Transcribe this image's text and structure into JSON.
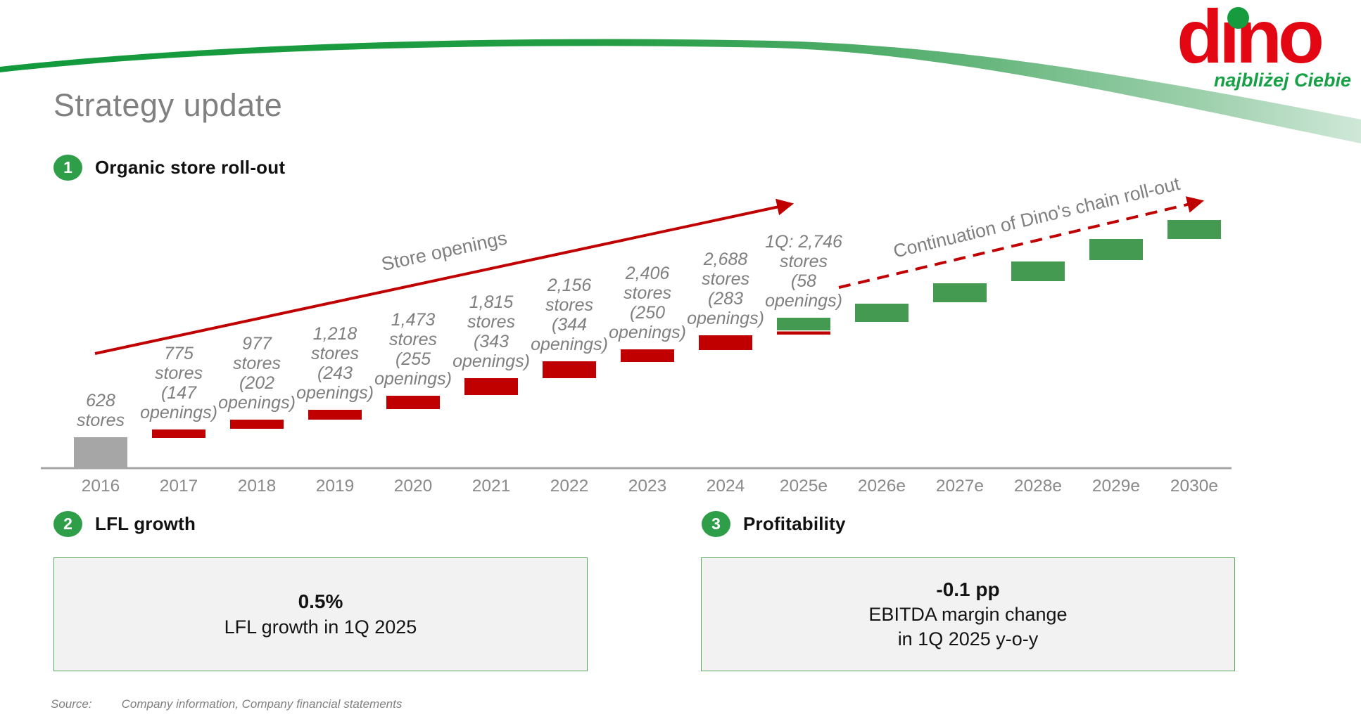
{
  "slide": {
    "title": "Strategy update",
    "logo": {
      "word": "dino",
      "tagline": "najbliżej Ciebie"
    },
    "source_label": "Source:",
    "source_text": "Company information, Company financial statements"
  },
  "sections": {
    "one": {
      "number": "1",
      "label": "Organic store roll-out"
    },
    "two": {
      "number": "2",
      "label": "LFL growth"
    },
    "three": {
      "number": "3",
      "label": "Profitability"
    }
  },
  "kpi_boxes": {
    "lfl": {
      "value": "0.5%",
      "caption": "LFL growth in 1Q 2025"
    },
    "profitability": {
      "value": "-0.1 pp",
      "caption_line1": "EBITDA margin change",
      "caption_line2": "in 1Q 2025 y-o-y"
    }
  },
  "colors": {
    "red": "#c00000",
    "green": "#459a52",
    "gray": "#a6a6a6",
    "label_gray": "#7f7f7f",
    "axis_gray": "#a6a6a6",
    "axis_label_gray": "#8a8a8a",
    "badge_green": "#2e9e48",
    "logo_red": "#e30613",
    "logo_green": "#169b3f",
    "box_border_green": "#58a85e",
    "box_fill": "#f2f2f2"
  },
  "chart_data": {
    "type": "bar",
    "title": "Organic store roll-out",
    "grid": false,
    "legend": false,
    "x_labels": [
      "2016",
      "2017",
      "2018",
      "2019",
      "2020",
      "2021",
      "2022",
      "2023",
      "2024",
      "2025e",
      "2026e",
      "2027e",
      "2028e",
      "2029e",
      "2030e"
    ],
    "bars": [
      {
        "year": "2016",
        "stores": 628,
        "openings": null,
        "color": "gray",
        "label_lines": [
          "628",
          "stores"
        ]
      },
      {
        "year": "2017",
        "stores": 775,
        "openings": 147,
        "color": "red",
        "label_lines": [
          "775",
          "stores",
          "(147",
          "openings)"
        ]
      },
      {
        "year": "2018",
        "stores": 977,
        "openings": 202,
        "color": "red",
        "label_lines": [
          "977",
          "stores",
          "(202",
          "openings)"
        ]
      },
      {
        "year": "2019",
        "stores": 1218,
        "openings": 243,
        "color": "red",
        "label_lines": [
          "1,218",
          "stores",
          "(243",
          "openings)"
        ]
      },
      {
        "year": "2020",
        "stores": 1473,
        "openings": 255,
        "color": "red",
        "label_lines": [
          "1,473",
          "stores",
          "(255",
          "openings)"
        ]
      },
      {
        "year": "2021",
        "stores": 1815,
        "openings": 343,
        "color": "red",
        "label_lines": [
          "1,815",
          "stores",
          "(343",
          "openings)"
        ]
      },
      {
        "year": "2022",
        "stores": 2156,
        "openings": 344,
        "color": "red",
        "label_lines": [
          "2,156",
          "stores",
          "(344",
          "openings)"
        ]
      },
      {
        "year": "2023",
        "stores": 2406,
        "openings": 250,
        "color": "red",
        "label_lines": [
          "2,406",
          "stores",
          "(250",
          "openings)"
        ]
      },
      {
        "year": "2024",
        "stores": 2688,
        "openings": 283,
        "color": "red",
        "label_lines": [
          "2,688",
          "stores",
          "(283",
          "openings)"
        ]
      },
      {
        "year": "2025e",
        "stores": 2746,
        "openings": 58,
        "period": "1Q",
        "color": "green",
        "q1_strip": true,
        "label_lines": [
          "1Q: 2,746",
          "stores",
          "(58",
          "openings)"
        ]
      },
      {
        "year": "2026e",
        "stores": null,
        "openings": null,
        "color": "green",
        "label_lines": []
      },
      {
        "year": "2027e",
        "stores": null,
        "openings": null,
        "color": "green",
        "label_lines": []
      },
      {
        "year": "2028e",
        "stores": null,
        "openings": null,
        "color": "green",
        "label_lines": []
      },
      {
        "year": "2029e",
        "stores": null,
        "openings": null,
        "color": "green",
        "label_lines": []
      },
      {
        "year": "2030e",
        "stores": null,
        "openings": null,
        "color": "green",
        "label_lines": []
      }
    ],
    "annotations": {
      "solid_arrow_label": "Store openings",
      "dashed_arrow_label": "Continuation of Dino's chain roll-out"
    }
  }
}
